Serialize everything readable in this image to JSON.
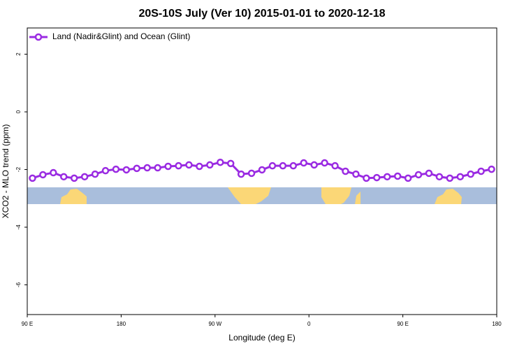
{
  "chart_data": {
    "type": "line",
    "title": "20S-10S July (Ver 10)   2015-01-01 to 2020-12-18",
    "x_label": "Longitude (deg E)",
    "y_label": "XCO2 - MLO trend (ppm)",
    "x": [
      95,
      105,
      115,
      125,
      135,
      145,
      155,
      165,
      175,
      185,
      195,
      205,
      215,
      225,
      235,
      245,
      255,
      265,
      275,
      285,
      295,
      305,
      315,
      325,
      335,
      345,
      355,
      365,
      375,
      385,
      395,
      405,
      415,
      425,
      435,
      445,
      455,
      465,
      475,
      485,
      495,
      505,
      515,
      525,
      535
    ],
    "series": [
      {
        "name": "Land (Nadir&Glint) and Ocean (Glint)",
        "color": "#9a2be2",
        "values": [
          -2.3,
          -2.18,
          -2.11,
          -2.25,
          -2.3,
          -2.25,
          -2.16,
          -2.04,
          -1.99,
          -2.01,
          -1.96,
          -1.94,
          -1.94,
          -1.89,
          -1.87,
          -1.84,
          -1.89,
          -1.84,
          -1.75,
          -1.79,
          -2.16,
          -2.13,
          -2.01,
          -1.87,
          -1.87,
          -1.87,
          -1.77,
          -1.84,
          -1.77,
          -1.87,
          -2.06,
          -2.16,
          -2.3,
          -2.28,
          -2.25,
          -2.23,
          -2.3,
          -2.18,
          -2.13,
          -2.25,
          -2.3,
          -2.25,
          -2.16,
          -2.06,
          -1.99
        ]
      }
    ],
    "xlim": [
      90,
      540
    ],
    "xticks": [
      {
        "value": 90,
        "label": "90 E"
      },
      180,
      {
        "value": 270,
        "label": "90 W"
      },
      {
        "value": 360,
        "label": "0"
      },
      {
        "value": 450,
        "label": "90 E"
      },
      {
        "value": 540,
        "label": "180"
      }
    ],
    "ylim": [
      -7.03,
      2.91
    ],
    "yticks": [
      -6,
      -4,
      -2,
      0,
      2
    ],
    "legend": "top-left"
  }
}
